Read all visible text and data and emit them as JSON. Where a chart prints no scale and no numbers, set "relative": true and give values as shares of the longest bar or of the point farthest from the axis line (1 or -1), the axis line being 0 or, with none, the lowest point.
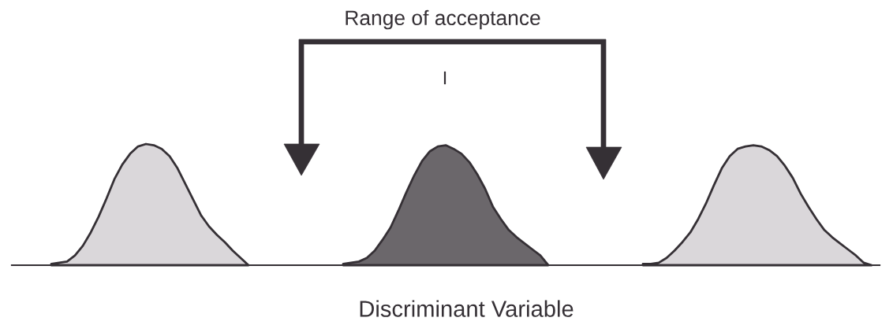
{
  "chart_data": {
    "type": "area",
    "relative": true,
    "xlabel": "Discriminant Variable",
    "annotations": [
      "Range of acceptance",
      "I"
    ],
    "categories": [
      null,
      null,
      null,
      null,
      null,
      null,
      null,
      null,
      null,
      null,
      null,
      null,
      null,
      null,
      null,
      null,
      null,
      null,
      null,
      null,
      null,
      null,
      null,
      null,
      null,
      null,
      null,
      null,
      null,
      null,
      null,
      null,
      null,
      null,
      null,
      null,
      null,
      null,
      null,
      null,
      null,
      null,
      null,
      null,
      null,
      null,
      null,
      null,
      null,
      null,
      null,
      null,
      null,
      null,
      null,
      null,
      null,
      null,
      null,
      null,
      null,
      null,
      null,
      null,
      null,
      null,
      null,
      null,
      null,
      null,
      null,
      null,
      null,
      null,
      null,
      null,
      null,
      null,
      null,
      null,
      null,
      null,
      null,
      null,
      null,
      null,
      null,
      null,
      null,
      null,
      null,
      null,
      null,
      null,
      null,
      null,
      null,
      null,
      null,
      null,
      null,
      null,
      null,
      null,
      null,
      null,
      null,
      null,
      null,
      null,
      null
    ],
    "series": [
      {
        "color": "#dad7da",
        "values": [
          null,
          null,
          null,
          null,
          null,
          0.01,
          0.02,
          0.03,
          0.08,
          0.16,
          0.27,
          0.4,
          0.55,
          0.71,
          0.83,
          0.92,
          0.98,
          1.0,
          0.99,
          0.96,
          0.9,
          0.8,
          0.67,
          0.54,
          0.41,
          0.32,
          0.25,
          0.19,
          0.12,
          0.06,
          0.0,
          null,
          null,
          null,
          null,
          null,
          null,
          null,
          null,
          null,
          null,
          null,
          null,
          null,
          null,
          null,
          null,
          null,
          null,
          null,
          null,
          null,
          null,
          null,
          null,
          null,
          null,
          null,
          null,
          null,
          null,
          null,
          null,
          null,
          null,
          null,
          null,
          null,
          null,
          null,
          null,
          null,
          null,
          null,
          null,
          null,
          null,
          null,
          null,
          null,
          null,
          null,
          null,
          null,
          null,
          null,
          null,
          null,
          null,
          null,
          null,
          null,
          null,
          null,
          null,
          null,
          null,
          null,
          null,
          null,
          null,
          null,
          null,
          null,
          null,
          null,
          null,
          null,
          null,
          null,
          null
        ]
      },
      {
        "color": "#6b676b",
        "values": [
          null,
          null,
          null,
          null,
          null,
          null,
          null,
          null,
          null,
          null,
          null,
          null,
          null,
          null,
          null,
          null,
          null,
          null,
          null,
          null,
          null,
          null,
          null,
          null,
          null,
          null,
          null,
          null,
          null,
          null,
          null,
          null,
          null,
          null,
          null,
          null,
          null,
          null,
          null,
          null,
          null,
          null,
          0.01,
          0.02,
          0.03,
          0.06,
          0.12,
          0.21,
          0.31,
          0.45,
          0.6,
          0.74,
          0.86,
          0.94,
          0.98,
          0.99,
          0.96,
          0.92,
          0.85,
          0.75,
          0.63,
          0.48,
          0.38,
          0.29,
          0.23,
          0.18,
          0.13,
          0.08,
          0.0,
          null,
          null,
          null,
          null,
          null,
          null,
          null,
          null,
          null,
          null,
          null,
          null,
          null,
          null,
          null,
          null,
          null,
          null,
          null,
          null,
          null,
          null,
          null,
          null,
          null,
          null,
          null,
          null,
          null,
          null,
          null,
          null,
          null,
          null,
          null,
          null,
          null,
          null,
          null,
          null,
          null,
          null
        ]
      },
      {
        "color": "#dad7da",
        "values": [
          null,
          null,
          null,
          null,
          null,
          null,
          null,
          null,
          null,
          null,
          null,
          null,
          null,
          null,
          null,
          null,
          null,
          null,
          null,
          null,
          null,
          null,
          null,
          null,
          null,
          null,
          null,
          null,
          null,
          null,
          null,
          null,
          null,
          null,
          null,
          null,
          null,
          null,
          null,
          null,
          null,
          null,
          null,
          null,
          null,
          null,
          null,
          null,
          null,
          null,
          null,
          null,
          null,
          null,
          null,
          null,
          null,
          null,
          null,
          null,
          null,
          null,
          null,
          null,
          null,
          null,
          null,
          null,
          null,
          null,
          null,
          null,
          null,
          null,
          null,
          null,
          null,
          null,
          null,
          null,
          0.01,
          0.01,
          0.02,
          0.06,
          0.12,
          0.19,
          0.27,
          0.38,
          0.51,
          0.66,
          0.8,
          0.9,
          0.96,
          0.98,
          0.99,
          0.98,
          0.95,
          0.9,
          0.82,
          0.72,
          0.59,
          0.48,
          0.38,
          0.29,
          0.23,
          0.18,
          0.13,
          0.08,
          0.02,
          0.0,
          null
        ]
      }
    ]
  }
}
